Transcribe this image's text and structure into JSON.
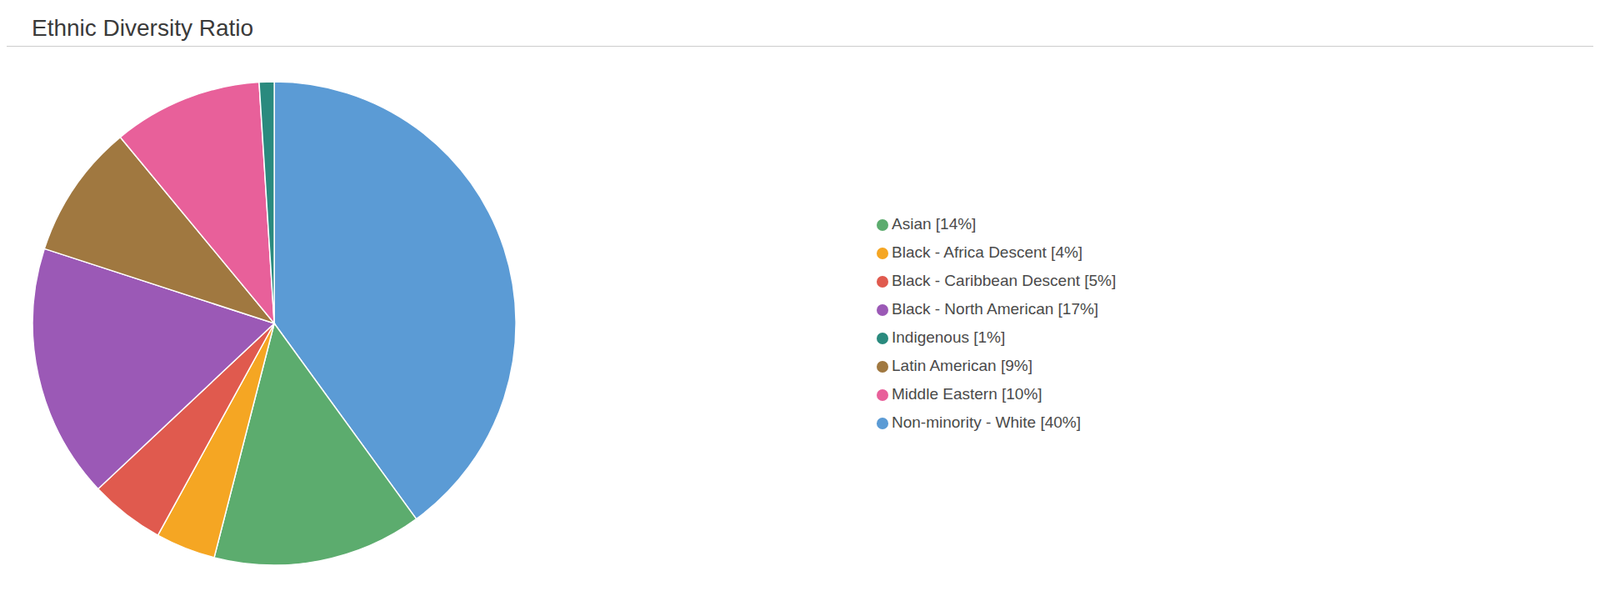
{
  "chart_data": {
    "type": "pie",
    "title": "Ethnic Diversity Ratio",
    "categories": [
      "Non-minority - White [40%]",
      "Asian [14%]",
      "Black - Africa Descent [4%]",
      "Black - Caribbean Descent [5%]",
      "Black - North American [17%]",
      "Latin American [9%]",
      "Middle Eastern [10%]",
      "Indigenous [1%]"
    ],
    "values": [
      40,
      14,
      4,
      5,
      17,
      9,
      10,
      1
    ],
    "colors": [
      "#5b9bd5",
      "#5cac6e",
      "#f5a623",
      "#e05a4e",
      "#9b59b6",
      "#a07840",
      "#e8609a",
      "#2a8a7e"
    ],
    "legend": "right"
  }
}
